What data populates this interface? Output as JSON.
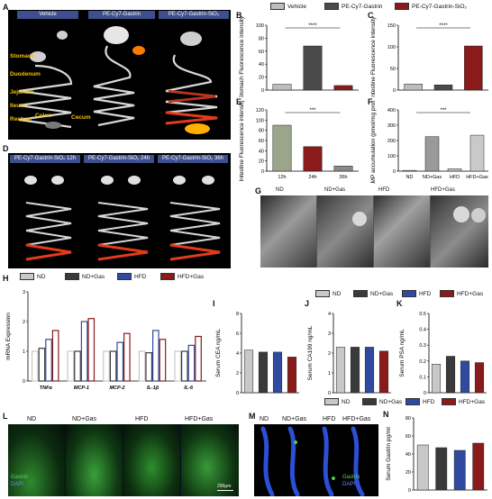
{
  "panels": {
    "A": {
      "label": "A",
      "titles": [
        "Vehicle",
        "PE-Cy7-Gastrin",
        "PE-Cy7-Gastrin-SiO₂"
      ],
      "organs": [
        "Stomach",
        "Duodenum",
        "Jejunum",
        "Ileum",
        "Rectum",
        "Colon",
        "Cecum"
      ]
    },
    "B": {
      "label": "B",
      "ylabel": "Stomach Fluorescence intensity",
      "sig": "****"
    },
    "C": {
      "label": "C",
      "ylabel": "Intestine Fluorescence intensity",
      "sig": "****"
    },
    "D": {
      "label": "D",
      "titles": [
        "PE-Cy7-Gastrin-SiO₂ 12h",
        "PE-Cy7-Gastrin-SiO₂ 24h",
        "PE-Cy7-Gastrin-SiO₂ 36h"
      ]
    },
    "E": {
      "label": "E",
      "ylabel": "Intestine Fluorescence intensity",
      "sig": "***"
    },
    "F": {
      "label": "F",
      "ylabel": "cAMP accumulation (pmol/mg protein)",
      "sig": "***"
    },
    "G": {
      "label": "G",
      "titles": [
        "ND",
        "ND+Gas",
        "HFD",
        "HFD+Gas"
      ]
    },
    "H": {
      "label": "H",
      "ylabel": "mRNA Expression"
    },
    "I": {
      "label": "I",
      "ylabel": "Serum CEA ng/mL"
    },
    "J": {
      "label": "J",
      "ylabel": "Serum CA199 ng/mL"
    },
    "K": {
      "label": "K",
      "ylabel": "Serum PSA ng/mL"
    },
    "L": {
      "label": "L",
      "titles": [
        "ND",
        "ND+Gas",
        "HFD",
        "HFD+Gas"
      ],
      "stain1": "Gastrin",
      "stain2": "DAPI",
      "scale": "200μm"
    },
    "M": {
      "label": "M",
      "titles": [
        "ND",
        "ND+Gas",
        "HFD",
        "HFD+Gas"
      ],
      "stain1": "Gastrin",
      "stain2": "DAPI"
    },
    "N": {
      "label": "N",
      "ylabel": "Serum Gastrin pg/ml"
    }
  },
  "legend_top": {
    "items": [
      {
        "label": "Vehicle",
        "color": "#bdbdbd"
      },
      {
        "label": "PE-Cy7-Gastrin",
        "color": "#4a4a4a"
      },
      {
        "label": "PE-Cy7-Gastrin-SiO₂",
        "color": "#8b1a1a"
      }
    ]
  },
  "legend_groups": {
    "items": [
      {
        "label": "ND",
        "color": "#c8c8c8"
      },
      {
        "label": "ND+Gas",
        "color": "#3a3a3a"
      },
      {
        "label": "HFD",
        "color": "#2f4a9e"
      },
      {
        "label": "HFD+Gas",
        "color": "#8b1a1a"
      }
    ]
  },
  "chart_data": [
    {
      "id": "B",
      "type": "bar",
      "categories": [
        "Vehicle",
        "PE-Cy7-Gastrin",
        "PE-Cy7-Gastrin-SiO₂"
      ],
      "values": [
        9,
        68,
        7
      ],
      "ylim": [
        0,
        100
      ],
      "yticks": [
        0,
        20,
        40,
        60,
        80,
        100
      ],
      "colors": [
        "#bdbdbd",
        "#4a4a4a",
        "#8b1a1a"
      ],
      "ylabel": "Stomach Fluorescence intensity"
    },
    {
      "id": "C",
      "type": "bar",
      "categories": [
        "Vehicle",
        "PE-Cy7-Gastrin",
        "PE-Cy7-Gastrin-SiO₂"
      ],
      "values": [
        14,
        12,
        102
      ],
      "ylim": [
        0,
        150
      ],
      "yticks": [
        0,
        50,
        100,
        150
      ],
      "colors": [
        "#bdbdbd",
        "#4a4a4a",
        "#8b1a1a"
      ],
      "ylabel": "Intestine Fluorescence intensity"
    },
    {
      "id": "E",
      "type": "bar",
      "categories": [
        "12h",
        "24h",
        "36h"
      ],
      "values": [
        90,
        48,
        10
      ],
      "ylim": [
        0,
        120
      ],
      "yticks": [
        0,
        20,
        40,
        60,
        80,
        100,
        120
      ],
      "colors": [
        "#9aa58a",
        "#8b1a1a",
        "#8a8a8a"
      ],
      "ylabel": "Intestine Fluorescence intensity"
    },
    {
      "id": "F",
      "type": "bar",
      "categories": [
        "ND",
        "ND+Gas",
        "HFD",
        "HFD+Gas"
      ],
      "values": [
        5,
        225,
        15,
        235
      ],
      "ylim": [
        0,
        400
      ],
      "yticks": [
        0,
        100,
        200,
        300,
        400
      ],
      "colors": [
        "#d0d0d0",
        "#9a9a9a",
        "#bdbdbd",
        "#c9c9c9"
      ],
      "ylabel": "cAMP accumulation (pmol/mg protein)"
    },
    {
      "id": "H",
      "type": "bar",
      "categories": [
        "TNFα",
        "MCP-1",
        "MCP-2",
        "IL-1β",
        "IL-6"
      ],
      "series": [
        {
          "name": "ND",
          "values": [
            1.0,
            1.0,
            1.0,
            1.0,
            1.0
          ]
        },
        {
          "name": "ND+Gas",
          "values": [
            1.1,
            1.0,
            1.0,
            0.95,
            1.0
          ]
        },
        {
          "name": "HFD",
          "values": [
            1.4,
            2.0,
            1.3,
            1.7,
            1.2
          ]
        },
        {
          "name": "HFD+Gas",
          "values": [
            1.7,
            2.1,
            1.6,
            1.4,
            1.5
          ]
        }
      ],
      "ylim": [
        0,
        3
      ],
      "yticks": [
        0,
        1,
        2,
        3
      ],
      "ylabel": "mRNA Expression"
    },
    {
      "id": "I",
      "type": "bar",
      "categories": [
        "ND",
        "ND+Gas",
        "HFD",
        "HFD+Gas"
      ],
      "values": [
        4.3,
        4.1,
        4.1,
        3.6
      ],
      "ylim": [
        0,
        8
      ],
      "yticks": [
        0,
        2,
        4,
        6,
        8
      ],
      "ylabel": "Serum CEA ng/mL"
    },
    {
      "id": "J",
      "type": "bar",
      "categories": [
        "ND",
        "ND+Gas",
        "HFD",
        "HFD+Gas"
      ],
      "values": [
        2.3,
        2.3,
        2.3,
        2.1
      ],
      "ylim": [
        0,
        4
      ],
      "yticks": [
        0,
        1,
        2,
        3,
        4
      ],
      "ylabel": "Serum CA199 ng/mL"
    },
    {
      "id": "K",
      "type": "bar",
      "categories": [
        "ND",
        "ND+Gas",
        "HFD",
        "HFD+Gas"
      ],
      "values": [
        0.18,
        0.23,
        0.2,
        0.19
      ],
      "ylim": [
        0,
        0.5
      ],
      "yticks": [
        0.0,
        0.1,
        0.2,
        0.3,
        0.4,
        0.5
      ],
      "ylabel": "Serum PSA ng/mL"
    },
    {
      "id": "N",
      "type": "bar",
      "categories": [
        "ND",
        "ND+Gas",
        "HFD",
        "HFD+Gas"
      ],
      "values": [
        50,
        47,
        44,
        52
      ],
      "ylim": [
        0,
        80
      ],
      "yticks": [
        0,
        20,
        40,
        60,
        80
      ],
      "ylabel": "Serum Gastrin pg/ml"
    }
  ]
}
